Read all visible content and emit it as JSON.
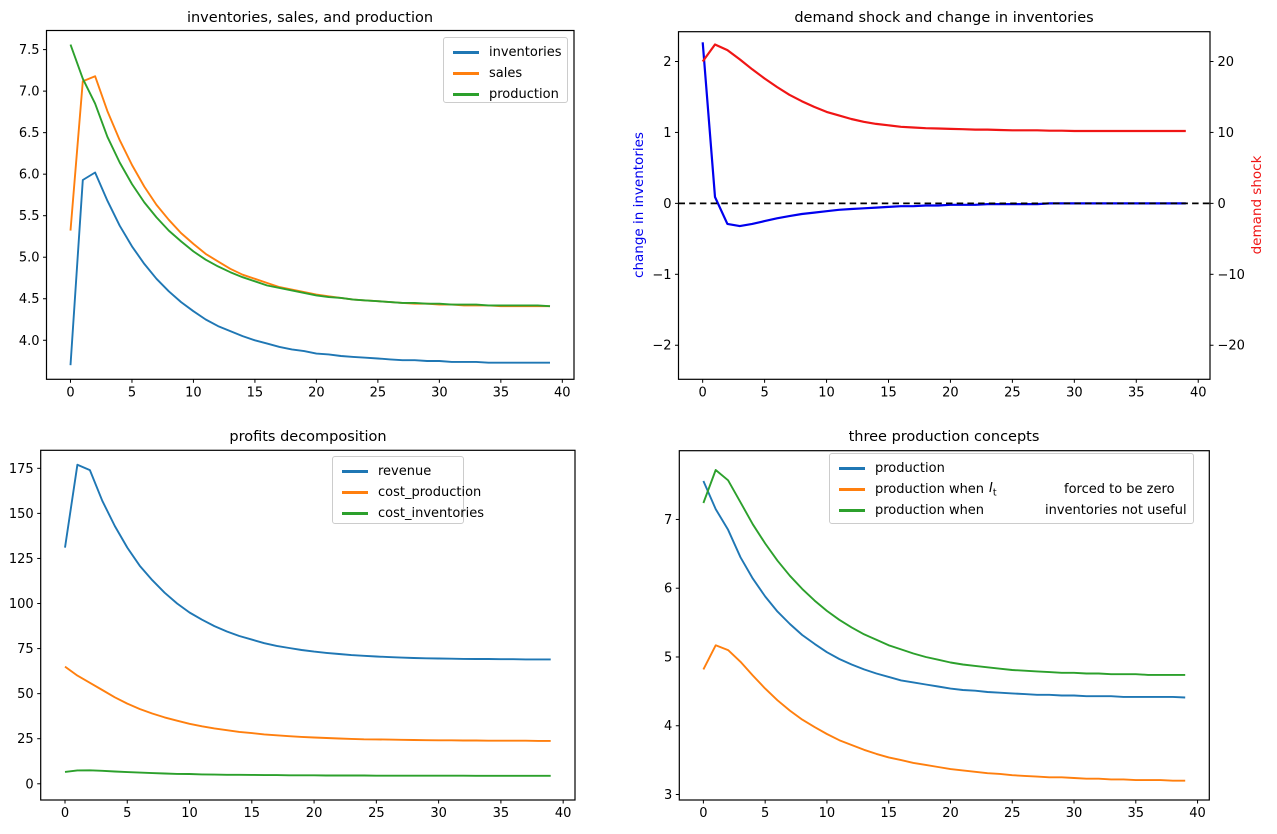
{
  "figure": {
    "background": "#ffffff"
  },
  "colors": {
    "mpl_blue": "#1f77b4",
    "mpl_orange": "#ff7f0e",
    "mpl_green": "#2ca02c",
    "pure_blue": "#0000ee",
    "pure_red": "#f01515",
    "black": "#000000"
  },
  "chart_data": [
    {
      "type": "line",
      "title": "inventories, sales, and production",
      "x": [
        0,
        1,
        2,
        3,
        4,
        5,
        6,
        7,
        8,
        9,
        10,
        11,
        12,
        13,
        14,
        15,
        16,
        17,
        18,
        19,
        20,
        21,
        22,
        23,
        24,
        25,
        26,
        27,
        28,
        29,
        30,
        31,
        32,
        33,
        34,
        35,
        36,
        37,
        38,
        39
      ],
      "xlim": [
        -1.95,
        40.95
      ],
      "ylim": [
        3.53,
        7.73
      ],
      "xticks": [
        0,
        5,
        10,
        15,
        20,
        25,
        30,
        35,
        40
      ],
      "xtick_labels": [
        "0",
        "5",
        "10",
        "15",
        "20",
        "25",
        "30",
        "35",
        "40"
      ],
      "yticks": [
        4.0,
        4.5,
        5.0,
        5.5,
        6.0,
        6.5,
        7.0,
        7.5
      ],
      "ytick_labels": [
        "4.0",
        "4.5",
        "5.0",
        "5.5",
        "6.0",
        "6.5",
        "7.0",
        "7.5"
      ],
      "grid": false,
      "series": [
        {
          "name": "inventories",
          "color": "#1f77b4",
          "values": [
            3.7,
            5.93,
            6.02,
            5.68,
            5.38,
            5.13,
            4.92,
            4.74,
            4.59,
            4.46,
            4.35,
            4.25,
            4.17,
            4.11,
            4.05,
            4.0,
            3.96,
            3.92,
            3.89,
            3.87,
            3.84,
            3.83,
            3.81,
            3.8,
            3.79,
            3.78,
            3.77,
            3.76,
            3.76,
            3.75,
            3.75,
            3.74,
            3.74,
            3.74,
            3.73,
            3.73,
            3.73,
            3.73,
            3.73,
            3.73
          ]
        },
        {
          "name": "sales",
          "color": "#ff7f0e",
          "values": [
            5.32,
            7.12,
            7.18,
            6.76,
            6.41,
            6.11,
            5.85,
            5.63,
            5.45,
            5.29,
            5.16,
            5.04,
            4.95,
            4.86,
            4.79,
            4.74,
            4.69,
            4.64,
            4.61,
            4.58,
            4.55,
            4.53,
            4.51,
            4.49,
            4.48,
            4.47,
            4.46,
            4.45,
            4.44,
            4.44,
            4.43,
            4.43,
            4.42,
            4.42,
            4.42,
            4.41,
            4.41,
            4.41,
            4.41,
            4.41
          ]
        },
        {
          "name": "production",
          "color": "#2ca02c",
          "values": [
            7.56,
            7.15,
            6.85,
            6.45,
            6.14,
            5.88,
            5.66,
            5.48,
            5.32,
            5.19,
            5.07,
            4.97,
            4.89,
            4.82,
            4.76,
            4.71,
            4.66,
            4.63,
            4.6,
            4.57,
            4.54,
            4.52,
            4.51,
            4.49,
            4.48,
            4.47,
            4.46,
            4.45,
            4.45,
            4.44,
            4.44,
            4.43,
            4.43,
            4.43,
            4.42,
            4.42,
            4.42,
            4.42,
            4.42,
            4.41
          ]
        }
      ],
      "legend": {
        "position": "upper right",
        "entries": [
          {
            "label": "inventories"
          },
          {
            "label": "sales"
          },
          {
            "label": "production"
          }
        ]
      }
    },
    {
      "type": "line",
      "title": "demand shock and change in inventories",
      "ylabel_left": {
        "text": "change in inventories",
        "color": "#0000ee"
      },
      "ylabel_right": {
        "text": "demand shock",
        "color": "#f01515"
      },
      "x": [
        0,
        1,
        2,
        3,
        4,
        5,
        6,
        7,
        8,
        9,
        10,
        11,
        12,
        13,
        14,
        15,
        16,
        17,
        18,
        19,
        20,
        21,
        22,
        23,
        24,
        25,
        26,
        27,
        28,
        29,
        30,
        31,
        32,
        33,
        34,
        35,
        36,
        37,
        38,
        39
      ],
      "xlim": [
        -1.95,
        40.95
      ],
      "ylim": [
        -2.48,
        2.42
      ],
      "ylim_right": [
        -24.8,
        24.2
      ],
      "xticks": [
        0,
        5,
        10,
        15,
        20,
        25,
        30,
        35,
        40
      ],
      "xtick_labels": [
        "0",
        "5",
        "10",
        "15",
        "20",
        "25",
        "30",
        "35",
        "40"
      ],
      "yticks": [
        -2,
        -1,
        0,
        1,
        2
      ],
      "ytick_labels": [
        "−2",
        "−1",
        "0",
        "1",
        "2"
      ],
      "yticks_right": [
        -20,
        -10,
        0,
        10,
        20
      ],
      "ytick_labels_right": [
        "−20",
        "−10",
        "0",
        "10",
        "20"
      ],
      "zero_line": {
        "y": 0,
        "style": "dashed",
        "color": "#000000"
      },
      "grid": false,
      "series": [
        {
          "name": "change in inventories",
          "axis": "left",
          "color": "#0000ee",
          "values": [
            2.27,
            0.09,
            -0.29,
            -0.32,
            -0.29,
            -0.25,
            -0.21,
            -0.18,
            -0.15,
            -0.13,
            -0.11,
            -0.09,
            -0.08,
            -0.07,
            -0.06,
            -0.05,
            -0.04,
            -0.04,
            -0.03,
            -0.03,
            -0.02,
            -0.02,
            -0.02,
            -0.01,
            -0.01,
            -0.01,
            -0.01,
            -0.01,
            0,
            0,
            0,
            0,
            0,
            0,
            0,
            0,
            0,
            0,
            0,
            0
          ]
        },
        {
          "name": "demand shock",
          "axis": "right",
          "color": "#f01515",
          "values": [
            20,
            22.4,
            21.6,
            20.3,
            18.9,
            17.6,
            16.4,
            15.3,
            14.4,
            13.6,
            12.9,
            12.4,
            11.9,
            11.5,
            11.2,
            11.0,
            10.8,
            10.7,
            10.6,
            10.55,
            10.5,
            10.45,
            10.4,
            10.4,
            10.35,
            10.3,
            10.3,
            10.3,
            10.25,
            10.25,
            10.2,
            10.2,
            10.2,
            10.2,
            10.2,
            10.2,
            10.2,
            10.2,
            10.2,
            10.2
          ]
        }
      ]
    },
    {
      "type": "line",
      "title": "profits decomposition",
      "x": [
        0,
        1,
        2,
        3,
        4,
        5,
        6,
        7,
        8,
        9,
        10,
        11,
        12,
        13,
        14,
        15,
        16,
        17,
        18,
        19,
        20,
        21,
        22,
        23,
        24,
        25,
        26,
        27,
        28,
        29,
        30,
        31,
        32,
        33,
        34,
        35,
        36,
        37,
        38,
        39
      ],
      "xlim": [
        -1.95,
        40.95
      ],
      "ylim": [
        -9,
        185
      ],
      "xticks": [
        0,
        5,
        10,
        15,
        20,
        25,
        30,
        35,
        40
      ],
      "xtick_labels": [
        "0",
        "5",
        "10",
        "15",
        "20",
        "25",
        "30",
        "35",
        "40"
      ],
      "yticks": [
        0,
        25,
        50,
        75,
        100,
        125,
        150,
        175
      ],
      "ytick_labels": [
        "0",
        "25",
        "50",
        "75",
        "100",
        "125",
        "150",
        "175"
      ],
      "grid": false,
      "series": [
        {
          "name": "revenue",
          "color": "#1f77b4",
          "values": [
            131,
            177,
            174,
            157,
            143,
            131,
            121,
            113,
            106,
            100,
            95,
            91,
            87.5,
            84.5,
            82,
            80,
            78,
            76.5,
            75.3,
            74.2,
            73.3,
            72.6,
            72,
            71.4,
            71,
            70.6,
            70.3,
            70,
            69.8,
            69.6,
            69.5,
            69.4,
            69.3,
            69.2,
            69.2,
            69.1,
            69.1,
            69,
            69,
            69
          ]
        },
        {
          "name": "cost_production",
          "color": "#ff7f0e",
          "values": [
            65,
            60,
            56,
            52,
            48,
            44.5,
            41.5,
            39,
            36.8,
            35,
            33.3,
            31.9,
            30.7,
            29.7,
            28.8,
            28.1,
            27.4,
            26.9,
            26.4,
            26,
            25.7,
            25.4,
            25.1,
            24.9,
            24.7,
            24.6,
            24.5,
            24.4,
            24.3,
            24.2,
            24.1,
            24.1,
            24,
            24,
            23.9,
            23.9,
            23.9,
            23.9,
            23.8,
            23.8
          ]
        },
        {
          "name": "cost_inventories",
          "color": "#2ca02c",
          "values": [
            6.6,
            7.4,
            7.5,
            7.2,
            6.8,
            6.5,
            6.2,
            5.9,
            5.7,
            5.5,
            5.4,
            5.2,
            5.1,
            5.0,
            5.0,
            4.9,
            4.8,
            4.8,
            4.7,
            4.7,
            4.7,
            4.6,
            4.6,
            4.6,
            4.6,
            4.5,
            4.5,
            4.5,
            4.5,
            4.5,
            4.5,
            4.5,
            4.5,
            4.4,
            4.4,
            4.4,
            4.4,
            4.4,
            4.4,
            4.4
          ]
        }
      ],
      "legend": {
        "position": "upper right",
        "entries": [
          {
            "label": "revenue"
          },
          {
            "label": "cost_production"
          },
          {
            "label": "cost_inventories"
          }
        ]
      }
    },
    {
      "type": "line",
      "title": "three production concepts",
      "x": [
        0,
        1,
        2,
        3,
        4,
        5,
        6,
        7,
        8,
        9,
        10,
        11,
        12,
        13,
        14,
        15,
        16,
        17,
        18,
        19,
        20,
        21,
        22,
        23,
        24,
        25,
        26,
        27,
        28,
        29,
        30,
        31,
        32,
        33,
        34,
        35,
        36,
        37,
        38,
        39
      ],
      "xlim": [
        -1.95,
        40.95
      ],
      "ylim": [
        2.92,
        8.0
      ],
      "xticks": [
        0,
        5,
        10,
        15,
        20,
        25,
        30,
        35,
        40
      ],
      "xtick_labels": [
        "0",
        "5",
        "10",
        "15",
        "20",
        "25",
        "30",
        "35",
        "40"
      ],
      "yticks": [
        3,
        4,
        5,
        6,
        7
      ],
      "ytick_labels": [
        "3",
        "4",
        "5",
        "6",
        "7"
      ],
      "grid": false,
      "series": [
        {
          "name": "production",
          "color": "#1f77b4",
          "values": [
            7.56,
            7.15,
            6.85,
            6.45,
            6.14,
            5.88,
            5.66,
            5.48,
            5.32,
            5.19,
            5.07,
            4.97,
            4.89,
            4.82,
            4.76,
            4.71,
            4.66,
            4.63,
            4.6,
            4.57,
            4.54,
            4.52,
            4.51,
            4.49,
            4.48,
            4.47,
            4.46,
            4.45,
            4.45,
            4.44,
            4.44,
            4.43,
            4.43,
            4.43,
            4.42,
            4.42,
            4.42,
            4.42,
            4.42,
            4.41
          ]
        },
        {
          "name": "production when I_t forced to be zero",
          "color": "#ff7f0e",
          "values": [
            4.82,
            5.17,
            5.1,
            4.93,
            4.73,
            4.54,
            4.37,
            4.22,
            4.09,
            3.98,
            3.88,
            3.79,
            3.72,
            3.65,
            3.59,
            3.54,
            3.5,
            3.46,
            3.43,
            3.4,
            3.37,
            3.35,
            3.33,
            3.31,
            3.3,
            3.28,
            3.27,
            3.26,
            3.25,
            3.25,
            3.24,
            3.23,
            3.23,
            3.22,
            3.22,
            3.21,
            3.21,
            3.21,
            3.2,
            3.2
          ]
        },
        {
          "name": "production when inventories not useful",
          "color": "#2ca02c",
          "values": [
            7.24,
            7.72,
            7.57,
            7.25,
            6.93,
            6.65,
            6.4,
            6.18,
            5.99,
            5.82,
            5.67,
            5.54,
            5.43,
            5.33,
            5.25,
            5.17,
            5.11,
            5.05,
            5.0,
            4.96,
            4.92,
            4.89,
            4.87,
            4.85,
            4.83,
            4.81,
            4.8,
            4.79,
            4.78,
            4.77,
            4.77,
            4.76,
            4.76,
            4.75,
            4.75,
            4.75,
            4.74,
            4.74,
            4.74,
            4.74
          ]
        }
      ],
      "legend": {
        "position": "upper left",
        "entries": [
          {
            "label": "production",
            "label2": ""
          },
          {
            "label": "production when",
            "label2": "forced to be zero",
            "math": {
              "base": "I",
              "sub": "t"
            }
          },
          {
            "label": "production when",
            "label2": "inventories not useful"
          }
        ]
      }
    }
  ]
}
